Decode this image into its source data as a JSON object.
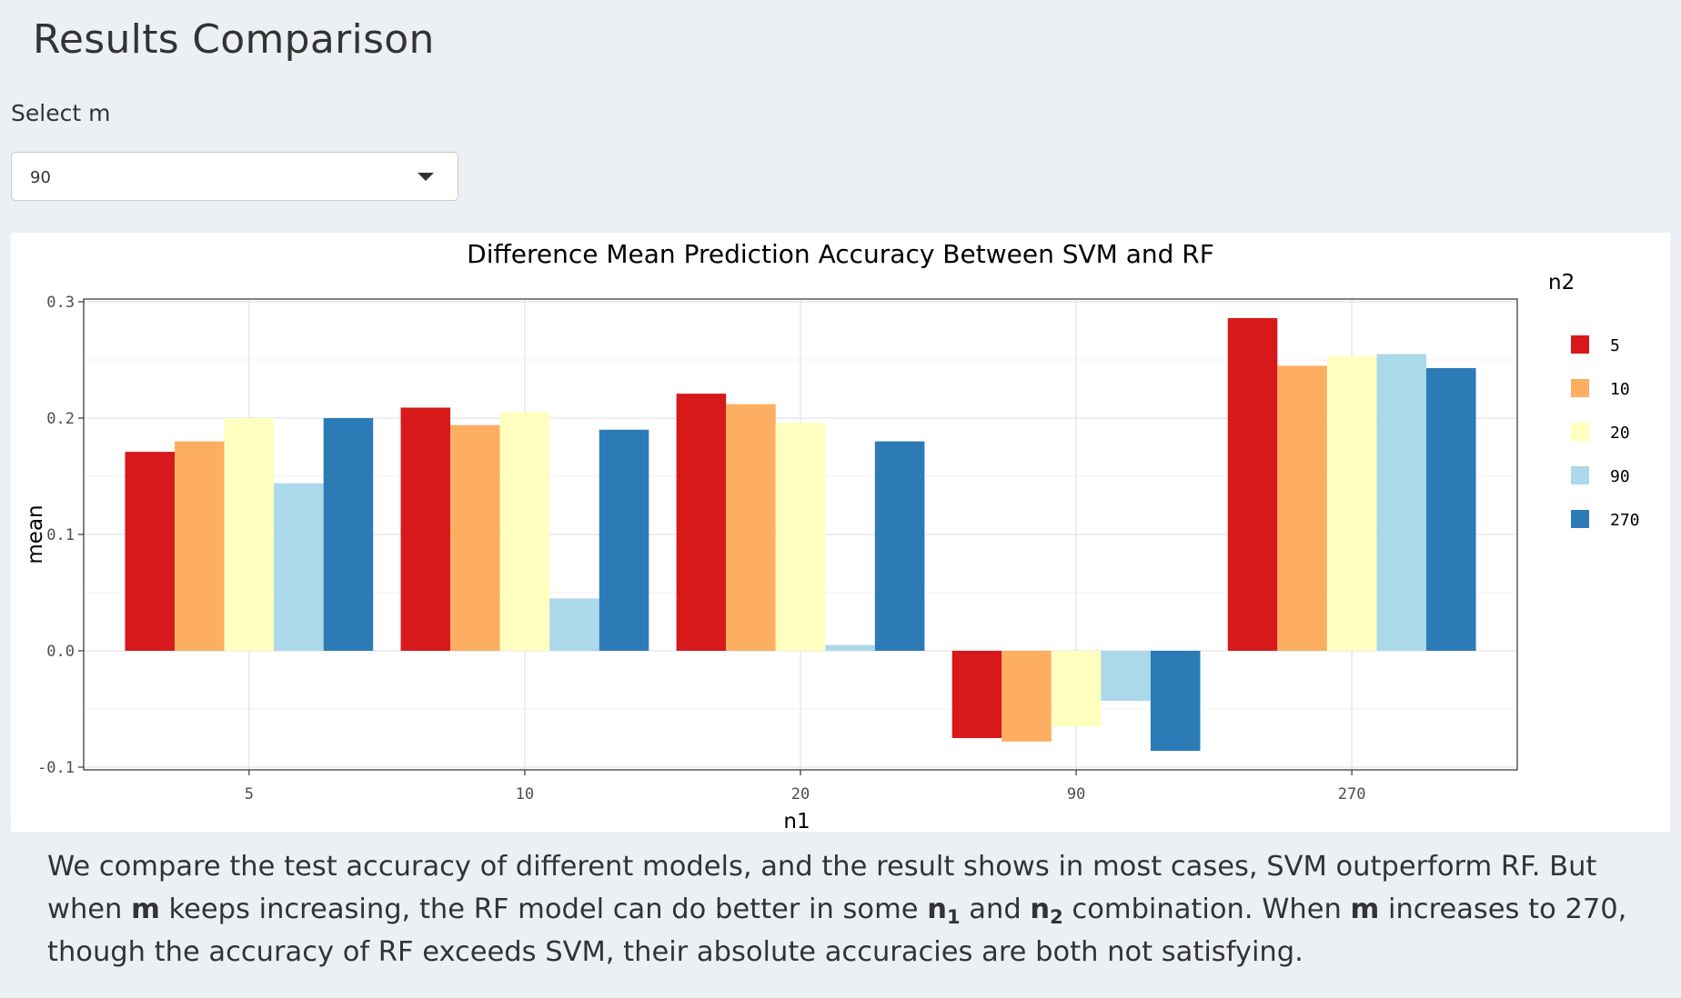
{
  "page": {
    "title": "Results Comparison"
  },
  "selector": {
    "label": "Select m",
    "value": "90"
  },
  "description": {
    "s1": "We compare the test accuracy of different models, and the result shows in most cases, SVM outperform RF. But when ",
    "m1": "m",
    "s2": " keeps increasing, the RF model can do better in some ",
    "n1_base": "n",
    "n1_sub": "1",
    "s3": " and ",
    "n2_base": "n",
    "n2_sub": "2",
    "s4": " combination. When ",
    "m2": "m",
    "s5": " increases to 270, though the accuracy of RF exceeds SVM, their absolute accuracies are both not satisfying."
  },
  "chart_data": {
    "type": "bar",
    "title": "Difference Mean Prediction Accuracy Between SVM and RF",
    "xlabel": "n1",
    "ylabel": "mean",
    "categories": [
      "5",
      "10",
      "20",
      "90",
      "270"
    ],
    "ylim": [
      -0.1,
      0.3
    ],
    "yticks": [
      -0.1,
      0.0,
      0.1,
      0.2,
      0.3
    ],
    "ytick_labels": [
      "-0.1",
      "0.0",
      "0.1",
      "0.2",
      "0.3"
    ],
    "legend_title": "n2",
    "legend_position": "right",
    "grid": true,
    "series": [
      {
        "name": "5",
        "color": "#d7191c",
        "values": [
          0.171,
          0.209,
          0.221,
          -0.075,
          0.286
        ]
      },
      {
        "name": "10",
        "color": "#fdae61",
        "values": [
          0.18,
          0.194,
          0.212,
          -0.078,
          0.245
        ]
      },
      {
        "name": "20",
        "color": "#ffffbf",
        "values": [
          0.2,
          0.205,
          0.196,
          -0.065,
          0.253
        ]
      },
      {
        "name": "90",
        "color": "#abd9e9",
        "values": [
          0.144,
          0.045,
          0.005,
          -0.043,
          0.255
        ]
      },
      {
        "name": "270",
        "color": "#2c7bb6",
        "values": [
          0.2,
          0.19,
          0.18,
          -0.086,
          0.243
        ]
      }
    ]
  }
}
